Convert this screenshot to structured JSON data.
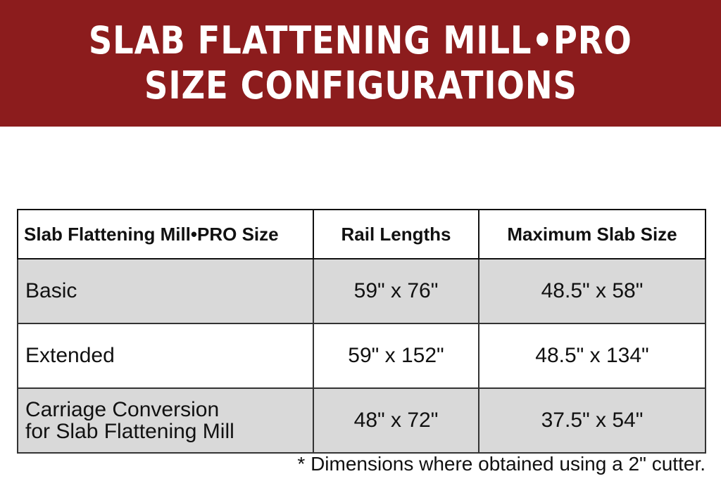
{
  "header": {
    "title_line1": "SLAB FLATTENING MILL•PRO",
    "title_line2": "SIZE CONFIGURATIONS"
  },
  "colors": {
    "banner": "#8c1c1d",
    "shaded_row": "#d9d9d9"
  },
  "table": {
    "columns": [
      "Slab Flattening Mill•PRO Size",
      "Rail Lengths",
      "Maximum Slab Size"
    ],
    "rows": [
      {
        "size": [
          "Basic"
        ],
        "rail_lengths": "59\" x 76\"",
        "max_slab_size": "48.5\" x 58\""
      },
      {
        "size": [
          "Extended"
        ],
        "rail_lengths": "59\" x 152\"",
        "max_slab_size": "48.5\" x 134\""
      },
      {
        "size": [
          "Carriage Conversion",
          "for Slab Flattening Mill"
        ],
        "rail_lengths": "48\" x 72\"",
        "max_slab_size": "37.5\" x 54\""
      }
    ]
  },
  "footnote": "* Dimensions where obtained using a 2\" cutter."
}
